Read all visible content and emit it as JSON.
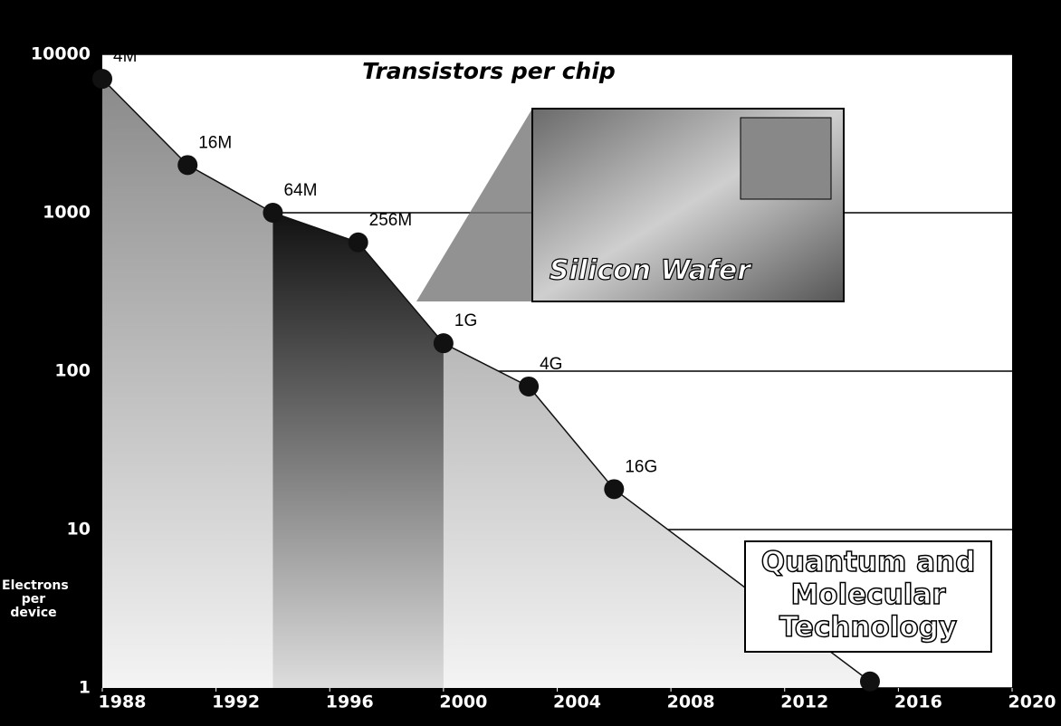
{
  "chart_data": {
    "type": "line",
    "title": "Transistors per chip",
    "y_label": "Electrons per device",
    "annotations": [
      "Silicon Wafer",
      "Quantum and Molecular Technology"
    ],
    "x": [
      1988,
      1991,
      1994,
      1997,
      2000,
      2003,
      2006,
      2015
    ],
    "series": [
      {
        "name": "Electrons per device",
        "color": "#111111",
        "values": [
          7000,
          2000,
          1000,
          650,
          150,
          80,
          18,
          1.1
        ],
        "point_labels": [
          "4M",
          "16M",
          "64M",
          "256M",
          "1G",
          "4G",
          "16G",
          null
        ]
      }
    ],
    "xlim": [
      1988,
      2020
    ],
    "xticks": [
      1988,
      1992,
      1996,
      2000,
      2004,
      2008,
      2012,
      2016,
      2020
    ],
    "ylim": [
      1,
      10000
    ],
    "yticks": [
      1,
      10,
      100,
      1000,
      10000
    ],
    "yscale": "log",
    "grid": true
  }
}
